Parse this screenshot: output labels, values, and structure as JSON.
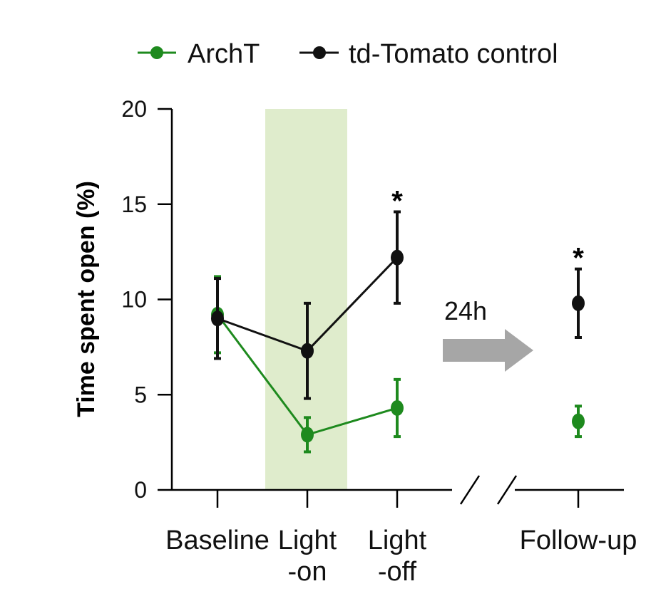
{
  "chart_data": {
    "type": "line",
    "ylabel": "Time spent open (%)",
    "ylim": [
      0,
      20
    ],
    "yticks": [
      "0",
      "5",
      "10",
      "15",
      "20"
    ],
    "categories": [
      "Baseline",
      "Light\n-on",
      "Light\n-off",
      "Follow-up"
    ],
    "highlight_category": "Light\n-on",
    "highlight_color": "#dfeccc",
    "annotation": "24h",
    "series": [
      {
        "name": "ArchT",
        "color": "#1e8a1e",
        "values": [
          9.2,
          2.9,
          4.3,
          3.6
        ],
        "errors": [
          2.0,
          0.9,
          1.5,
          0.8
        ],
        "connected": [
          true,
          true,
          true,
          false
        ]
      },
      {
        "name": "td-Tomato control",
        "color": "#111111",
        "values": [
          9.0,
          7.3,
          12.2,
          9.8
        ],
        "errors": [
          2.1,
          2.5,
          2.4,
          1.8
        ],
        "connected": [
          true,
          true,
          true,
          false
        ]
      }
    ],
    "significance": [
      {
        "category": "Light\n-off",
        "label": "*"
      },
      {
        "category": "Follow-up",
        "label": "*"
      }
    ]
  }
}
